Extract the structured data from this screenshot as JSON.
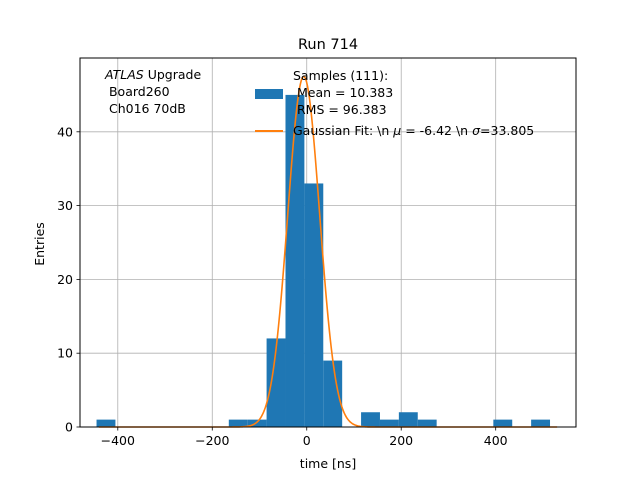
{
  "chart_data": {
    "type": "bar",
    "title": "Run 714",
    "xlabel": "time [ns]",
    "ylabel": "Entries",
    "xlim": [
      -480,
      570
    ],
    "ylim": [
      0,
      50
    ],
    "grid": true,
    "xticks": [
      -400,
      -200,
      0,
      200,
      400
    ],
    "xtick_labels": [
      "−400",
      "−200",
      "0",
      "200",
      "400"
    ],
    "yticks": [
      0,
      10,
      20,
      30,
      40
    ],
    "yticks_labels": [
      "0",
      "10",
      "20",
      "30",
      "40"
    ],
    "bin_width": 40,
    "histogram": {
      "name": "Samples (111):\n Mean = 10.383\n RMS = 96.383",
      "color": "#1f77b4",
      "bins": [
        {
          "x0": -445,
          "value": 1
        },
        {
          "x0": -165,
          "value": 1
        },
        {
          "x0": -125,
          "value": 1
        },
        {
          "x0": -85,
          "value": 12
        },
        {
          "x0": -45,
          "value": 45
        },
        {
          "x0": -5,
          "value": 33
        },
        {
          "x0": 35,
          "value": 9
        },
        {
          "x0": 115,
          "value": 2
        },
        {
          "x0": 155,
          "value": 1
        },
        {
          "x0": 195,
          "value": 2
        },
        {
          "x0": 235,
          "value": 1
        },
        {
          "x0": 395,
          "value": 1
        },
        {
          "x0": 475,
          "value": 1
        }
      ]
    },
    "gaussian_fit": {
      "name": "Gaussian Fit: \\n μ = -6.42 \\n σ=33.805",
      "color": "#ff7f0e",
      "mu": -6.42,
      "sigma": 33.805,
      "amplitude": 47.5,
      "x_range": [
        -440,
        530
      ]
    },
    "legend_placement": "upper-right",
    "annotation": {
      "line1_italic": "ATLAS",
      "line1_rest": " Upgrade",
      "line2": " Board260",
      "line3": " Ch016 70dB"
    }
  },
  "legend": {
    "hist_lines": [
      "Samples (111):",
      " Mean = 10.383",
      " RMS = 96.383"
    ],
    "fit_prefix": "Gaussian Fit: \\n ",
    "fit_mu_symbol": "μ",
    "fit_mid": " = -6.42 \\n ",
    "fit_sigma_symbol": "σ",
    "fit_suffix": "=33.805"
  }
}
